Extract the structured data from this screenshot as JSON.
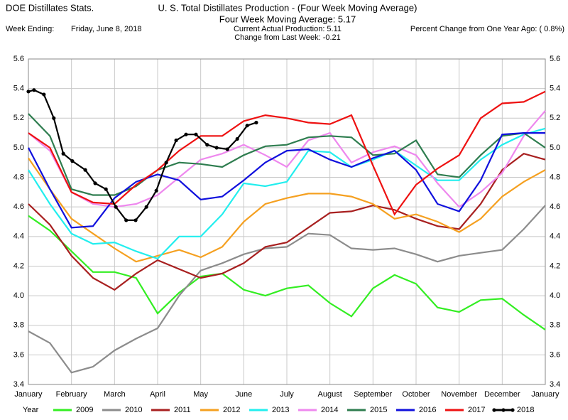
{
  "chart_data": {
    "type": "line",
    "source": "DOE Distillates Stats.",
    "title": "U. S. Total Distillates Production - (Four Week Moving Average)",
    "subtitle": "Four Week Moving Average:  5.17",
    "week_ending_label": "Week Ending:",
    "week_ending": "Friday, June 8, 2018",
    "current": "Current Actual Production:   5.11",
    "change": "Change from Last Week: -0.21",
    "percent_change": "Percent Change from One Year Ago: ( 0.8%)",
    "legend_title": "Year",
    "grid": true,
    "xlim": [
      0,
      12
    ],
    "xticks": [
      {
        "value": 0,
        "label": "January"
      },
      {
        "value": 1,
        "label": "February"
      },
      {
        "value": 2,
        "label": "March"
      },
      {
        "value": 3,
        "label": "April"
      },
      {
        "value": 4,
        "label": "May"
      },
      {
        "value": 5,
        "label": "June"
      },
      {
        "value": 6,
        "label": "July"
      },
      {
        "value": 7,
        "label": "August"
      },
      {
        "value": 8,
        "label": "September"
      },
      {
        "value": 9,
        "label": "October"
      },
      {
        "value": 10,
        "label": "November"
      },
      {
        "value": 11,
        "label": "December"
      },
      {
        "value": 12,
        "label": "January"
      }
    ],
    "ylim": [
      3.4,
      5.6
    ],
    "yticks": [
      3.4,
      3.6,
      3.8,
      {
        "value": 4,
        "label": "4.0"
      },
      4.2,
      4.4,
      4.6,
      4.8,
      {
        "value": 5,
        "label": "5.0"
      },
      5.2,
      5.4,
      5.6
    ],
    "x": [
      0,
      0.5,
      1,
      1.5,
      2,
      2.5,
      3,
      3.5,
      4,
      4.5,
      5,
      5.5,
      6,
      6.5,
      7,
      7.5,
      8,
      8.5,
      9,
      9.5,
      10,
      10.5,
      11,
      11.5,
      12
    ],
    "series": [
      {
        "name": "2009",
        "color": "#33ee22",
        "values": [
          4.54,
          4.44,
          4.3,
          4.16,
          4.16,
          4.12,
          3.88,
          4.02,
          4.13,
          4.15,
          4.04,
          4.0,
          4.05,
          4.07,
          3.95,
          3.86,
          4.05,
          4.14,
          4.08,
          3.92,
          3.89,
          3.97,
          3.98,
          3.87,
          3.77
        ]
      },
      {
        "name": "2010",
        "color": "#8c8c8c",
        "values": [
          3.76,
          3.68,
          3.48,
          3.52,
          3.63,
          3.71,
          3.78,
          4.0,
          4.17,
          4.22,
          4.28,
          4.32,
          4.33,
          4.42,
          4.41,
          4.32,
          4.31,
          4.32,
          4.28,
          4.23,
          4.27,
          4.29,
          4.31,
          4.45,
          4.61
        ]
      },
      {
        "name": "2011",
        "color": "#a82020",
        "values": [
          4.62,
          4.48,
          4.27,
          4.12,
          4.04,
          4.15,
          4.24,
          4.18,
          4.12,
          4.15,
          4.22,
          4.33,
          4.36,
          4.46,
          4.56,
          4.57,
          4.61,
          4.58,
          4.52,
          4.47,
          4.45,
          4.62,
          4.85,
          4.96,
          4.92
        ]
      },
      {
        "name": "2012",
        "color": "#f5a020",
        "values": [
          4.93,
          4.72,
          4.52,
          4.42,
          4.32,
          4.23,
          4.27,
          4.31,
          4.26,
          4.33,
          4.5,
          4.62,
          4.66,
          4.69,
          4.69,
          4.67,
          4.62,
          4.52,
          4.55,
          4.5,
          4.43,
          4.52,
          4.67,
          4.77,
          4.85
        ]
      },
      {
        "name": "2013",
        "color": "#22eeee",
        "values": [
          4.85,
          4.62,
          4.42,
          4.35,
          4.36,
          4.3,
          4.25,
          4.4,
          4.4,
          4.55,
          4.76,
          4.74,
          4.77,
          4.98,
          4.97,
          4.87,
          4.92,
          4.98,
          4.88,
          4.78,
          4.78,
          4.92,
          5.02,
          5.09,
          5.13
        ]
      },
      {
        "name": "2014",
        "color": "#ee88ee",
        "values": [
          5.1,
          4.98,
          4.7,
          4.62,
          4.6,
          4.62,
          4.68,
          4.8,
          4.92,
          4.96,
          5.02,
          4.95,
          4.87,
          5.05,
          5.1,
          4.9,
          4.97,
          5.01,
          4.95,
          4.76,
          4.6,
          4.7,
          4.83,
          5.08,
          5.25
        ]
      },
      {
        "name": "2015",
        "color": "#2e7d4f",
        "values": [
          5.23,
          5.08,
          4.72,
          4.68,
          4.68,
          4.74,
          4.85,
          4.9,
          4.89,
          4.87,
          4.95,
          5.01,
          5.02,
          5.07,
          5.08,
          5.07,
          4.95,
          4.96,
          5.05,
          4.82,
          4.8,
          4.95,
          5.08,
          5.1,
          5.0
        ]
      },
      {
        "name": "2016",
        "color": "#1010dd",
        "values": [
          5.0,
          4.72,
          4.46,
          4.47,
          4.66,
          4.77,
          4.82,
          4.78,
          4.65,
          4.67,
          4.78,
          4.9,
          4.98,
          4.99,
          4.92,
          4.87,
          4.93,
          4.98,
          4.85,
          4.62,
          4.57,
          4.78,
          5.09,
          5.1,
          5.1
        ]
      },
      {
        "name": "2017",
        "color": "#ee1111",
        "values": [
          5.1,
          5.0,
          4.7,
          4.63,
          4.62,
          4.75,
          4.85,
          4.98,
          5.08,
          5.08,
          5.18,
          5.22,
          5.2,
          5.17,
          5.16,
          5.22,
          4.88,
          4.55,
          4.75,
          4.86,
          4.95,
          5.2,
          5.3,
          5.31,
          5.38
        ]
      },
      {
        "name": "2018",
        "color": "#000000",
        "markers": true,
        "x": [
          0,
          0.13,
          0.36,
          0.59,
          0.81,
          1.02,
          1.32,
          1.55,
          1.8,
          2.03,
          2.27,
          2.49,
          2.74,
          2.97,
          3.2,
          3.43,
          3.66,
          3.89,
          4.15,
          4.37,
          4.62,
          4.85,
          5.08,
          5.29
        ],
        "values": [
          5.38,
          5.39,
          5.36,
          5.2,
          4.96,
          4.91,
          4.85,
          4.76,
          4.72,
          4.6,
          4.51,
          4.51,
          4.6,
          4.71,
          4.9,
          5.05,
          5.09,
          5.09,
          5.02,
          5.0,
          4.99,
          5.06,
          5.15,
          5.17
        ]
      }
    ]
  }
}
